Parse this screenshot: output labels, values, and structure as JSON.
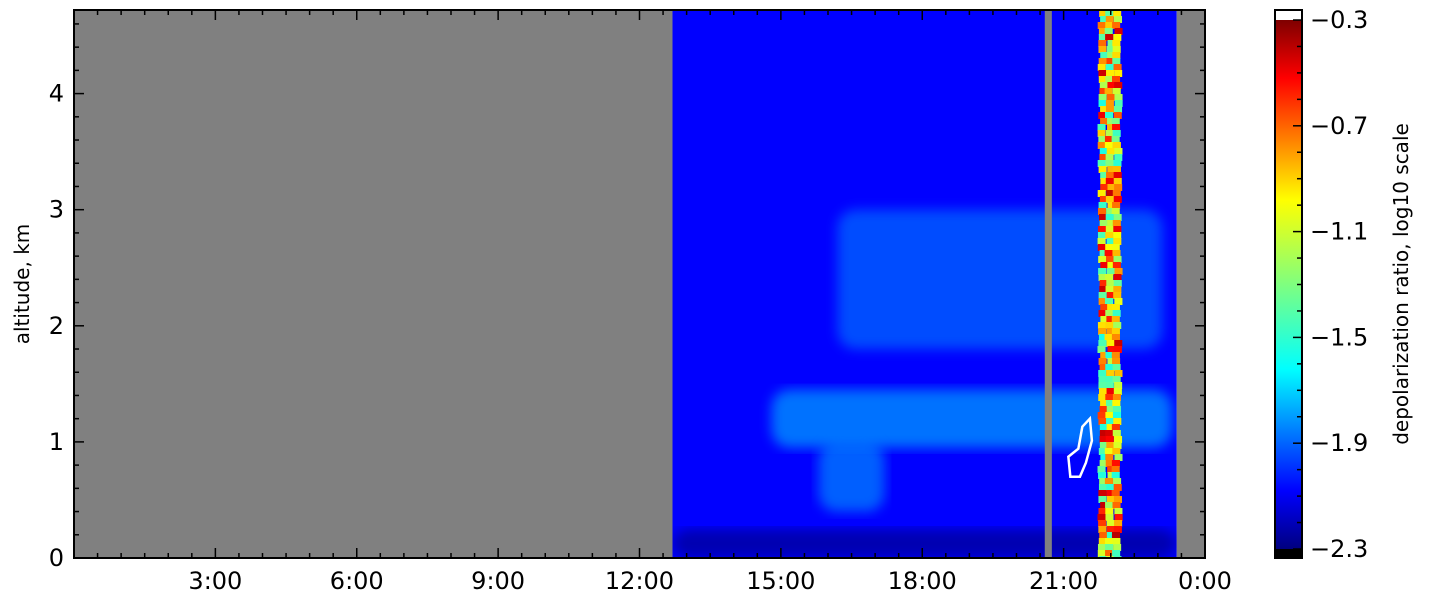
{
  "chart_data": {
    "type": "heatmap",
    "title": "",
    "xlabel": "",
    "ylabel": "altitude, km",
    "colorbar_label": "depolarization ratio, log10 scale",
    "x_tick_labels": [
      "3:00",
      "6:00",
      "9:00",
      "12:00",
      "15:00",
      "18:00",
      "21:00",
      "0:00"
    ],
    "x_tick_hours": [
      3,
      6,
      9,
      12,
      15,
      18,
      21,
      24
    ],
    "xlim_hours": [
      0,
      24
    ],
    "y_ticks": [
      0,
      1,
      2,
      3,
      4
    ],
    "y_tick_labels": [
      "0",
      "1",
      "2",
      "3",
      "4"
    ],
    "ylim": [
      0,
      4.72
    ],
    "colorbar_ticks": [
      -0.3,
      -0.7,
      -1.1,
      -1.5,
      -1.9,
      -2.3
    ],
    "colorbar_tick_labels": [
      "−0.3",
      "−0.7",
      "−1.1",
      "−1.5",
      "−1.9",
      "−2.3"
    ],
    "colorbar_range": [
      -2.3,
      -0.3
    ],
    "colormap": "jet",
    "missing_data_color": "#808080",
    "no_data_intervals_hours": [
      [
        0,
        12.7
      ],
      [
        20.6,
        20.75
      ],
      [
        23.4,
        24
      ]
    ],
    "background_value": -2.05,
    "layers": [
      {
        "feature": "aerosol layer",
        "t_start": 14.8,
        "t_end": 23.3,
        "alt_base": 0.95,
        "alt_top": 1.45,
        "value": -1.75
      },
      {
        "feature": "elevated aerosol arc",
        "t_start": 16.2,
        "t_end": 23.1,
        "alt_base": 1.8,
        "alt_top": 3.0,
        "value": -1.85
      },
      {
        "feature": "rising plume",
        "t_start": 15.8,
        "t_end": 17.2,
        "alt_base": 0.4,
        "alt_top": 1.0,
        "value": -1.8
      },
      {
        "feature": "near-surface layer",
        "t_start": 12.7,
        "t_end": 23.4,
        "alt_base": 0.0,
        "alt_top": 0.25,
        "value": -2.25
      }
    ],
    "noisy_column": {
      "t_start": 21.75,
      "t_end": 22.2,
      "alt_base": 0.0,
      "alt_top": 4.72,
      "value_range": [
        -1.5,
        -0.4
      ]
    },
    "contour": {
      "color": "#ffffff",
      "t_start": 21.1,
      "t_end": 21.6,
      "alt_base": 0.7,
      "alt_top": 1.2
    }
  }
}
